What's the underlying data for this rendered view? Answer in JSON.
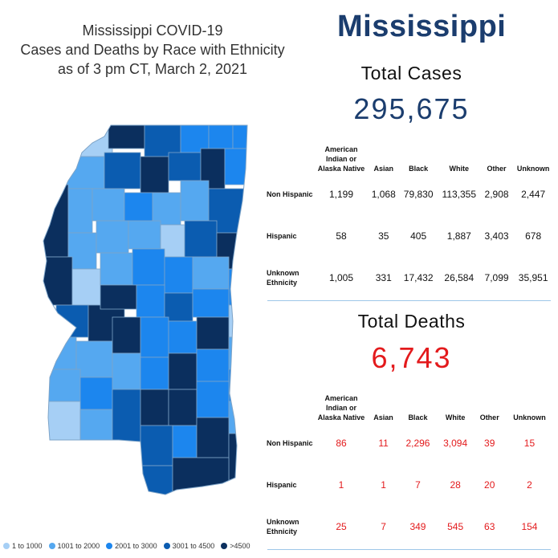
{
  "map_title": {
    "line1": "Mississippi COVID-19",
    "line2": "Cases and Deaths by Race with Ethnicity",
    "line3": "as of 3 pm CT, March 2, 2021"
  },
  "state_name": "Mississippi",
  "cases": {
    "title": "Total Cases",
    "total": "295,675",
    "columns": [
      "American Indian or Alaska Native",
      "Asian",
      "Black",
      "White",
      "Other",
      "Unknown"
    ],
    "rows": [
      {
        "label": "Non Hispanic",
        "values": [
          "1,199",
          "1,068",
          "79,830",
          "113,355",
          "2,908",
          "2,447"
        ]
      },
      {
        "label": "Hispanic",
        "values": [
          "58",
          "35",
          "405",
          "1,887",
          "3,403",
          "678"
        ]
      },
      {
        "label": "Unknown Ethnicity",
        "values": [
          "1,005",
          "331",
          "17,432",
          "26,584",
          "7,099",
          "35,951"
        ]
      }
    ]
  },
  "deaths": {
    "title": "Total Deaths",
    "total": "6,743",
    "columns": [
      "American Indian or Alaska Native",
      "Asian",
      "Black",
      "White",
      "Other",
      "Unknown"
    ],
    "rows": [
      {
        "label": "Non Hispanic",
        "values": [
          "86",
          "11",
          "2,296",
          "3,094",
          "39",
          "15"
        ]
      },
      {
        "label": "Hispanic",
        "values": [
          "1",
          "1",
          "7",
          "28",
          "20",
          "2"
        ]
      },
      {
        "label": "Unknown Ethnicity",
        "values": [
          "25",
          "7",
          "349",
          "545",
          "63",
          "154"
        ]
      }
    ]
  },
  "legend": [
    {
      "label": "1 to 1000",
      "color": "#a6cff5"
    },
    {
      "label": "1001 to 2000",
      "color": "#55a8f0"
    },
    {
      "label": "2001 to 3000",
      "color": "#1c86ee"
    },
    {
      "label": "3001 to 4500",
      "color": "#0b5cb0"
    },
    {
      "label": ">4500",
      "color": "#0b2f5e"
    }
  ],
  "colors": {
    "state_name": "#1b3d6e",
    "cases_total": "#1b3d6e",
    "deaths_total": "#e31a1c",
    "divider": "#9ec7e8"
  }
}
